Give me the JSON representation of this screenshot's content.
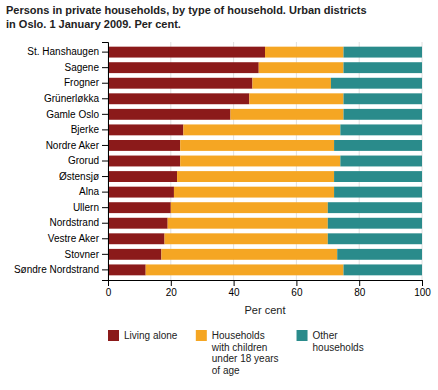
{
  "chart_data": {
    "type": "bar",
    "orientation": "horizontal",
    "stacked": true,
    "title": "Persons in private households, by type of household. Urban districts\nin Oslo. 1 January 2009. Per cent.",
    "xlabel": "Per cent",
    "categories": [
      "St. Hanshaugen",
      "Sagene",
      "Frogner",
      "Grünerløkka",
      "Gamle Oslo",
      "Bjerke",
      "Nordre Aker",
      "Grorud",
      "Østensjø",
      "Alna",
      "Ullern",
      "Nordstrand",
      "Vestre Aker",
      "Stovner",
      "Søndre Nordstrand"
    ],
    "series": [
      {
        "name": "Living alone",
        "color": "#8B1A1A",
        "values": [
          50,
          48,
          46,
          45,
          39,
          24,
          23,
          23,
          22,
          21,
          20,
          19,
          18,
          17,
          12
        ]
      },
      {
        "name": "Households\nwith children\nunder 18 years\nof age",
        "color": "#F5A623",
        "values": [
          25,
          27,
          25,
          30,
          36,
          50,
          49,
          51,
          50,
          51,
          50,
          51,
          52,
          56,
          63
        ]
      },
      {
        "name": "Other\nhouseholds",
        "color": "#2A8B8B",
        "values": [
          25,
          25,
          29,
          25,
          25,
          26,
          28,
          26,
          28,
          28,
          30,
          30,
          30,
          27,
          25
        ]
      }
    ],
    "xlim": [
      0,
      100
    ],
    "xticks": [
      0,
      20,
      40,
      60,
      80,
      100
    ],
    "grid": true,
    "legend": "bottom"
  }
}
